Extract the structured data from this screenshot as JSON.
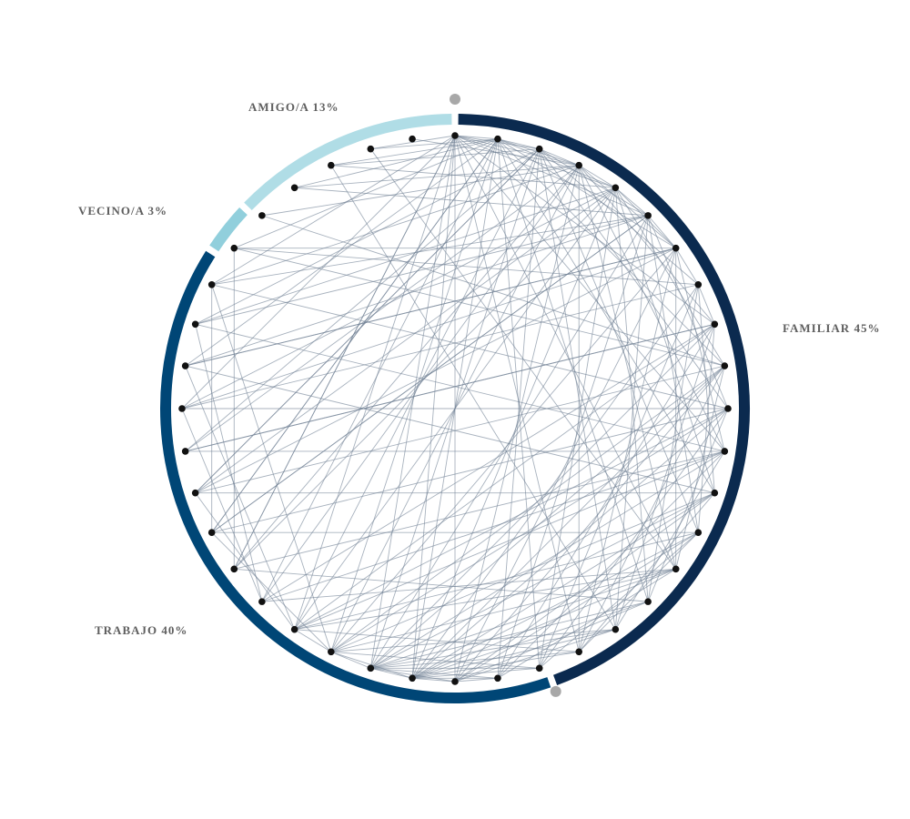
{
  "chart_data": {
    "type": "chord-network",
    "segments": [
      {
        "key": "familiar",
        "label": "FAMILIAR 45%",
        "percent": 45,
        "color": "#0b2a4f"
      },
      {
        "key": "trabajo",
        "label": "TRABAJO 40%",
        "percent": 40,
        "color": "#004676"
      },
      {
        "key": "vecino",
        "label": "VECINO/A 3%",
        "percent": 3,
        "color": "#91cfdc"
      },
      {
        "key": "amigo",
        "label": "AMIGO/A 13%",
        "percent": 13,
        "color": "#b0dde6"
      }
    ],
    "node_count": 40,
    "link_color": "#6e7e92",
    "node_color": "#111111",
    "marker_color": "#a8a8a8",
    "links": [
      [
        0,
        1
      ],
      [
        0,
        2
      ],
      [
        0,
        3
      ],
      [
        0,
        4
      ],
      [
        0,
        5
      ],
      [
        0,
        8
      ],
      [
        0,
        11
      ],
      [
        0,
        14
      ],
      [
        0,
        17
      ],
      [
        0,
        20
      ],
      [
        0,
        21
      ],
      [
        0,
        22
      ],
      [
        0,
        24
      ],
      [
        0,
        26
      ],
      [
        1,
        2
      ],
      [
        1,
        3
      ],
      [
        1,
        4
      ],
      [
        1,
        6
      ],
      [
        1,
        9
      ],
      [
        1,
        12
      ],
      [
        1,
        15
      ],
      [
        1,
        18
      ],
      [
        1,
        21
      ],
      [
        1,
        23
      ],
      [
        1,
        25
      ],
      [
        1,
        27
      ],
      [
        2,
        3
      ],
      [
        2,
        5
      ],
      [
        2,
        7
      ],
      [
        2,
        10
      ],
      [
        2,
        13
      ],
      [
        2,
        16
      ],
      [
        2,
        19
      ],
      [
        2,
        22
      ],
      [
        2,
        24
      ],
      [
        2,
        28
      ],
      [
        3,
        4
      ],
      [
        3,
        6
      ],
      [
        3,
        8
      ],
      [
        3,
        11
      ],
      [
        3,
        14
      ],
      [
        3,
        17
      ],
      [
        3,
        20
      ],
      [
        3,
        23
      ],
      [
        3,
        25
      ],
      [
        3,
        29
      ],
      [
        4,
        5
      ],
      [
        4,
        6
      ],
      [
        4,
        9
      ],
      [
        4,
        12
      ],
      [
        4,
        15
      ],
      [
        4,
        18
      ],
      [
        4,
        21
      ],
      [
        4,
        24
      ],
      [
        4,
        26
      ],
      [
        4,
        30
      ],
      [
        5,
        6
      ],
      [
        5,
        10
      ],
      [
        5,
        13
      ],
      [
        5,
        16
      ],
      [
        5,
        19
      ],
      [
        5,
        22
      ],
      [
        5,
        27
      ],
      [
        5,
        32
      ],
      [
        5,
        33
      ],
      [
        6,
        7
      ],
      [
        6,
        11
      ],
      [
        6,
        14
      ],
      [
        6,
        17
      ],
      [
        6,
        20
      ],
      [
        6,
        23
      ],
      [
        6,
        28
      ],
      [
        6,
        31
      ],
      [
        6,
        34
      ],
      [
        7,
        8
      ],
      [
        7,
        12
      ],
      [
        7,
        15
      ],
      [
        7,
        18
      ],
      [
        7,
        21
      ],
      [
        8,
        13
      ],
      [
        8,
        16
      ],
      [
        8,
        19
      ],
      [
        8,
        22
      ],
      [
        8,
        24
      ],
      [
        8,
        25
      ],
      [
        9,
        14
      ],
      [
        9,
        17
      ],
      [
        9,
        20
      ],
      [
        9,
        21
      ],
      [
        9,
        22
      ],
      [
        9,
        23
      ],
      [
        10,
        15
      ],
      [
        10,
        18
      ],
      [
        10,
        21
      ],
      [
        10,
        23
      ],
      [
        10,
        24
      ],
      [
        11,
        16
      ],
      [
        11,
        19
      ],
      [
        11,
        22
      ],
      [
        11,
        24
      ],
      [
        11,
        25
      ],
      [
        12,
        17
      ],
      [
        12,
        20
      ],
      [
        12,
        21
      ],
      [
        12,
        22
      ],
      [
        12,
        23
      ],
      [
        13,
        17
      ],
      [
        13,
        18
      ],
      [
        13,
        20
      ],
      [
        13,
        21
      ],
      [
        14,
        19
      ],
      [
        14,
        21
      ],
      [
        14,
        22
      ],
      [
        14,
        23
      ],
      [
        14,
        24
      ],
      [
        15,
        20
      ],
      [
        15,
        21
      ],
      [
        15,
        22
      ],
      [
        16,
        20
      ],
      [
        16,
        21
      ],
      [
        16,
        22
      ],
      [
        16,
        23
      ],
      [
        17,
        21
      ],
      [
        17,
        22
      ],
      [
        17,
        24
      ],
      [
        18,
        21
      ],
      [
        18,
        22
      ],
      [
        18,
        23
      ],
      [
        19,
        20
      ],
      [
        19,
        21
      ],
      [
        19,
        22
      ],
      [
        20,
        21
      ],
      [
        20,
        22
      ],
      [
        21,
        22
      ],
      [
        21,
        23
      ],
      [
        22,
        23
      ],
      [
        23,
        24
      ],
      [
        1,
        36
      ],
      [
        1,
        37
      ],
      [
        1,
        38
      ],
      [
        2,
        37
      ],
      [
        3,
        36
      ],
      [
        0,
        38
      ],
      [
        4,
        37
      ],
      [
        5,
        36
      ],
      [
        24,
        28
      ],
      [
        23,
        27
      ],
      [
        25,
        30
      ],
      [
        24,
        31
      ],
      [
        25,
        32
      ],
      [
        23,
        33
      ],
      [
        26,
        34
      ],
      [
        27,
        33
      ],
      [
        29,
        8
      ],
      [
        30,
        6
      ],
      [
        31,
        5
      ],
      [
        32,
        4
      ],
      [
        33,
        3
      ],
      [
        34,
        7
      ],
      [
        35,
        9
      ],
      [
        28,
        2
      ],
      [
        27,
        1
      ],
      [
        26,
        0
      ],
      [
        30,
        0
      ],
      [
        31,
        1
      ],
      [
        32,
        2
      ],
      [
        33,
        0
      ],
      [
        34,
        1
      ],
      [
        35,
        3
      ],
      [
        29,
        2
      ],
      [
        28,
        4
      ],
      [
        27,
        5
      ],
      [
        26,
        3
      ],
      [
        6,
        31
      ],
      [
        7,
        30
      ],
      [
        8,
        29
      ],
      [
        9,
        28
      ],
      [
        10,
        27
      ],
      [
        11,
        26
      ],
      [
        9,
        34
      ],
      [
        10,
        33
      ],
      [
        11,
        32
      ],
      [
        12,
        31
      ],
      [
        38,
        14
      ],
      [
        37,
        16
      ],
      [
        39,
        3
      ],
      [
        24,
        13
      ],
      [
        25,
        14
      ],
      [
        26,
        15
      ],
      [
        27,
        13
      ],
      [
        28,
        12
      ],
      [
        29,
        11
      ],
      [
        30,
        10
      ]
    ]
  }
}
